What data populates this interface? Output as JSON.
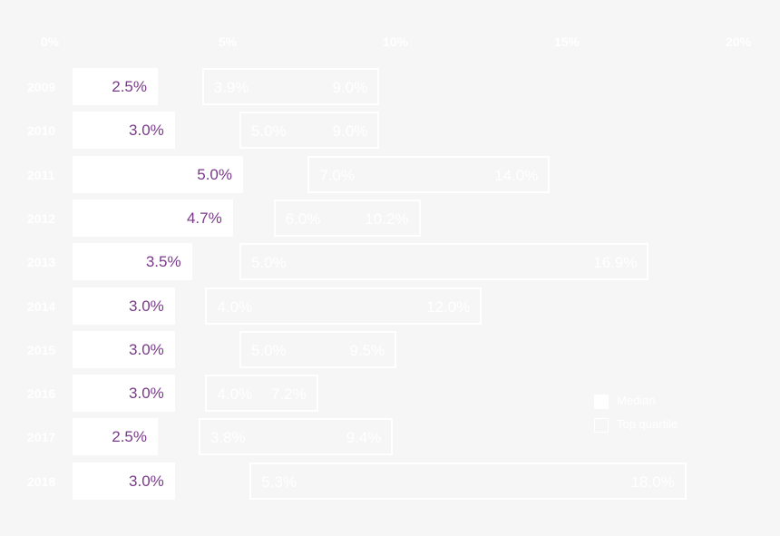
{
  "chart_data": {
    "type": "bar",
    "orientation": "horizontal",
    "title": "",
    "xlabel": "",
    "ylabel": "",
    "xlim": [
      0,
      20
    ],
    "x_ticks": [
      "0%",
      "5%",
      "10%",
      "15%",
      "20%"
    ],
    "categories": [
      "2009",
      "2010",
      "2011",
      "2012",
      "2013",
      "2014",
      "2015",
      "2016",
      "2017",
      "2018"
    ],
    "series": [
      {
        "name": "Median",
        "style": "filled",
        "values": [
          2.5,
          3.0,
          5.0,
          4.7,
          3.5,
          3.0,
          3.0,
          3.0,
          2.5,
          3.0
        ],
        "labels": [
          "2.5%",
          "3.0%",
          "5.0%",
          "4.7%",
          "3.5%",
          "3.0%",
          "3.0%",
          "3.0%",
          "2.5%",
          "3.0%"
        ]
      },
      {
        "name": "Top quartile",
        "style": "outline range",
        "low": [
          3.9,
          5.0,
          7.0,
          6.0,
          5.0,
          4.0,
          5.0,
          4.0,
          3.8,
          5.3
        ],
        "high": [
          9.0,
          9.0,
          14.0,
          10.2,
          16.9,
          12.0,
          9.5,
          7.2,
          9.4,
          18.0
        ],
        "low_labels": [
          "3.9%",
          "5.0%",
          "7.0%",
          "6.0%",
          "5.0%",
          "4.0%",
          "5.0%",
          "4.0%",
          "3.8%",
          "5.3%"
        ],
        "high_labels": [
          "9.0%",
          "9.0%",
          "14.0%",
          "10.2%",
          "16.9%",
          "12.0%",
          "9.5%",
          "7.2%",
          "9.4%",
          "18.0%"
        ]
      }
    ],
    "legend": {
      "position": "lower right",
      "entries": [
        "Median",
        "Top quartile"
      ]
    },
    "grid": false,
    "colors": {
      "background": "#f6f6f6",
      "bars": "#ffffff",
      "median_label": "#7a3a8a",
      "outline": "#ffffff"
    }
  },
  "axis": {
    "ticks": [
      "0%",
      "5%",
      "10%",
      "15%",
      "20%"
    ]
  },
  "legend": {
    "median": "Median",
    "top_quartile": "Top quartile"
  }
}
